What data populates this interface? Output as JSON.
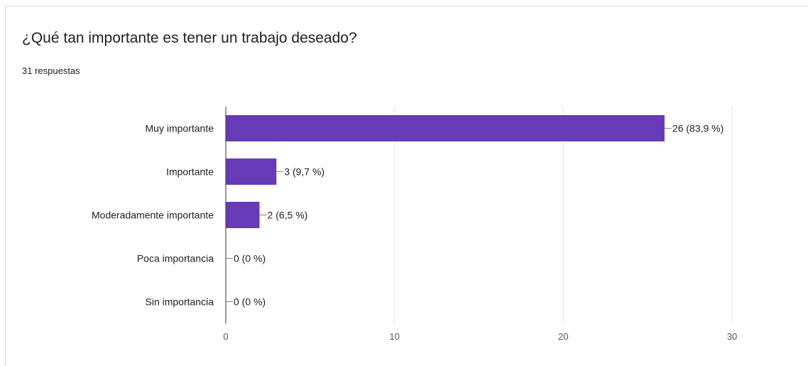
{
  "question": {
    "title": "¿Qué tan importante es tener un trabajo deseado?",
    "responses": "31 respuestas"
  },
  "colors": {
    "bar": "#673ab7",
    "grid": "#e6e6e6",
    "axis": "#333333",
    "text": "#202124",
    "tick_text": "#555555"
  },
  "chart_data": {
    "type": "bar",
    "orientation": "horizontal",
    "categories": [
      "Muy importante",
      "Importante",
      "Moderadamente importante",
      "Poca importancia",
      "Sin importancia"
    ],
    "values": [
      26,
      3,
      2,
      0,
      0
    ],
    "data_labels": [
      "26 (83,9 %)",
      "3 (9,7 %)",
      "2 (6,5 %)",
      "0 (0 %)",
      "0 (0 %)"
    ],
    "xlim": [
      0,
      30
    ],
    "xticks": [
      0,
      10,
      20,
      30
    ],
    "grid": true,
    "legend": "none"
  }
}
